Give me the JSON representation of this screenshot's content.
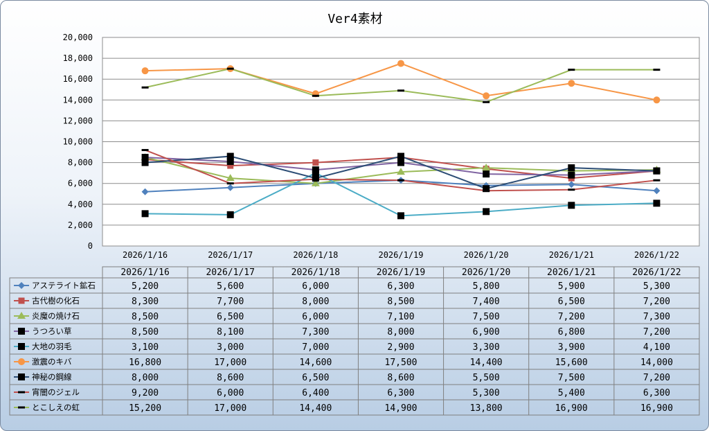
{
  "chart_data": {
    "type": "line",
    "title": "Ver4素材",
    "categories": [
      "2026/1/16",
      "2026/1/17",
      "2026/1/18",
      "2026/1/19",
      "2026/1/20",
      "2026/1/21",
      "2026/1/22"
    ],
    "ylim": [
      0,
      20000
    ],
    "yticks": [
      "0",
      "2,000",
      "4,000",
      "6,000",
      "8,000",
      "10,000",
      "12,000",
      "14,000",
      "16,000",
      "18,000",
      "20,000"
    ],
    "grid": true,
    "legend": "data-table",
    "series": [
      {
        "name": "アステライト鉱石",
        "color": "#4f81bd",
        "marker": "diamond",
        "values": [
          5200,
          5600,
          6000,
          6300,
          5800,
          5900,
          5300
        ],
        "labels": [
          "5,200",
          "5,600",
          "6,000",
          "6,300",
          "5,800",
          "5,900",
          "5,300"
        ]
      },
      {
        "name": "古代樹の化石",
        "color": "#c0504d",
        "marker": "square",
        "values": [
          8300,
          7700,
          8000,
          8500,
          7400,
          6500,
          7200
        ],
        "labels": [
          "8,300",
          "7,700",
          "8,000",
          "8,500",
          "7,400",
          "6,500",
          "7,200"
        ]
      },
      {
        "name": "炎魔の焼け石",
        "color": "#9bbb59",
        "marker": "triangle",
        "values": [
          8500,
          6500,
          6000,
          7100,
          7500,
          7200,
          7300
        ],
        "labels": [
          "8,500",
          "6,500",
          "6,000",
          "7,100",
          "7,500",
          "7,200",
          "7,300"
        ]
      },
      {
        "name": "うつろい草",
        "color": "#8064a2",
        "marker": "bigsquare",
        "values": [
          8500,
          8100,
          7300,
          8000,
          6900,
          6800,
          7200
        ],
        "labels": [
          "8,500",
          "8,100",
          "7,300",
          "8,000",
          "6,900",
          "6,800",
          "7,200"
        ]
      },
      {
        "name": "大地の羽毛",
        "color": "#4bacc6",
        "marker": "bigsquare",
        "values": [
          3100,
          3000,
          7000,
          2900,
          3300,
          3900,
          4100
        ],
        "labels": [
          "3,100",
          "3,000",
          "7,000",
          "2,900",
          "3,300",
          "3,900",
          "4,100"
        ]
      },
      {
        "name": "激震のキバ",
        "color": "#f79646",
        "marker": "circle",
        "values": [
          16800,
          17000,
          14600,
          17500,
          14400,
          15600,
          14000
        ],
        "labels": [
          "16,800",
          "17,000",
          "14,600",
          "17,500",
          "14,400",
          "15,600",
          "14,000"
        ]
      },
      {
        "name": "神秘の鋼線",
        "color": "#2c4d75",
        "marker": "bigsquare",
        "values": [
          8000,
          8600,
          6500,
          8600,
          5500,
          7500,
          7200
        ],
        "labels": [
          "8,000",
          "8,600",
          "6,500",
          "8,600",
          "5,500",
          "7,500",
          "7,200"
        ]
      },
      {
        "name": "宵闇のジェル",
        "color": "#c0504d",
        "marker": "dash",
        "values": [
          9200,
          6000,
          6400,
          6300,
          5300,
          5400,
          6300
        ],
        "labels": [
          "9,200",
          "6,000",
          "6,400",
          "6,300",
          "5,300",
          "5,400",
          "6,300"
        ]
      },
      {
        "name": "とこしえの虹",
        "color": "#9bbb59",
        "marker": "dash",
        "values": [
          15200,
          17000,
          14400,
          14900,
          13800,
          16900,
          16900
        ],
        "labels": [
          "15,200",
          "17,000",
          "14,400",
          "14,900",
          "13,800",
          "16,900",
          "16,900"
        ]
      }
    ]
  }
}
